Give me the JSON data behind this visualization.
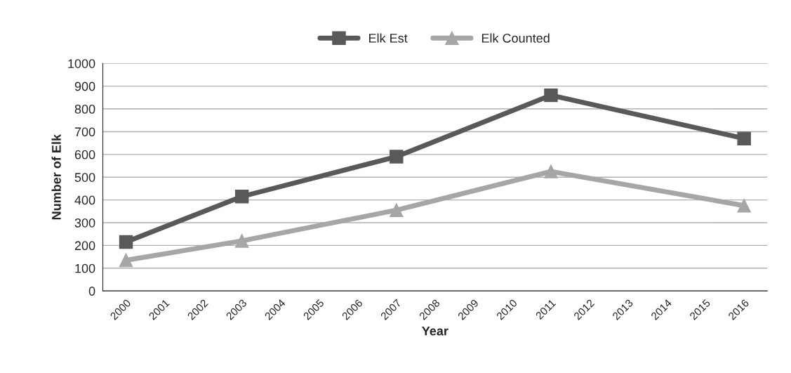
{
  "chart_data": {
    "type": "line",
    "xlabel": "Year",
    "ylabel": "Number of Elk",
    "categories": [
      "2000",
      "2001",
      "2002",
      "2003",
      "2004",
      "2005",
      "2006",
      "2007",
      "2008",
      "2009",
      "2010",
      "2011",
      "2012",
      "2013",
      "2014",
      "2015",
      "2016"
    ],
    "series": [
      {
        "name": "Elk Est",
        "color": "#595959",
        "marker": "square",
        "values": [
          215,
          null,
          null,
          415,
          null,
          null,
          null,
          590,
          null,
          null,
          null,
          860,
          null,
          null,
          null,
          null,
          670
        ]
      },
      {
        "name": "Elk Counted",
        "color": "#a6a6a6",
        "marker": "triangle",
        "values": [
          135,
          null,
          null,
          220,
          null,
          null,
          null,
          355,
          null,
          null,
          null,
          525,
          null,
          null,
          null,
          null,
          375
        ]
      }
    ],
    "ylim": [
      0,
      1000
    ],
    "yticks": [
      0,
      100,
      200,
      300,
      400,
      500,
      600,
      700,
      800,
      900,
      1000
    ],
    "grid": "y",
    "legend": "top"
  }
}
